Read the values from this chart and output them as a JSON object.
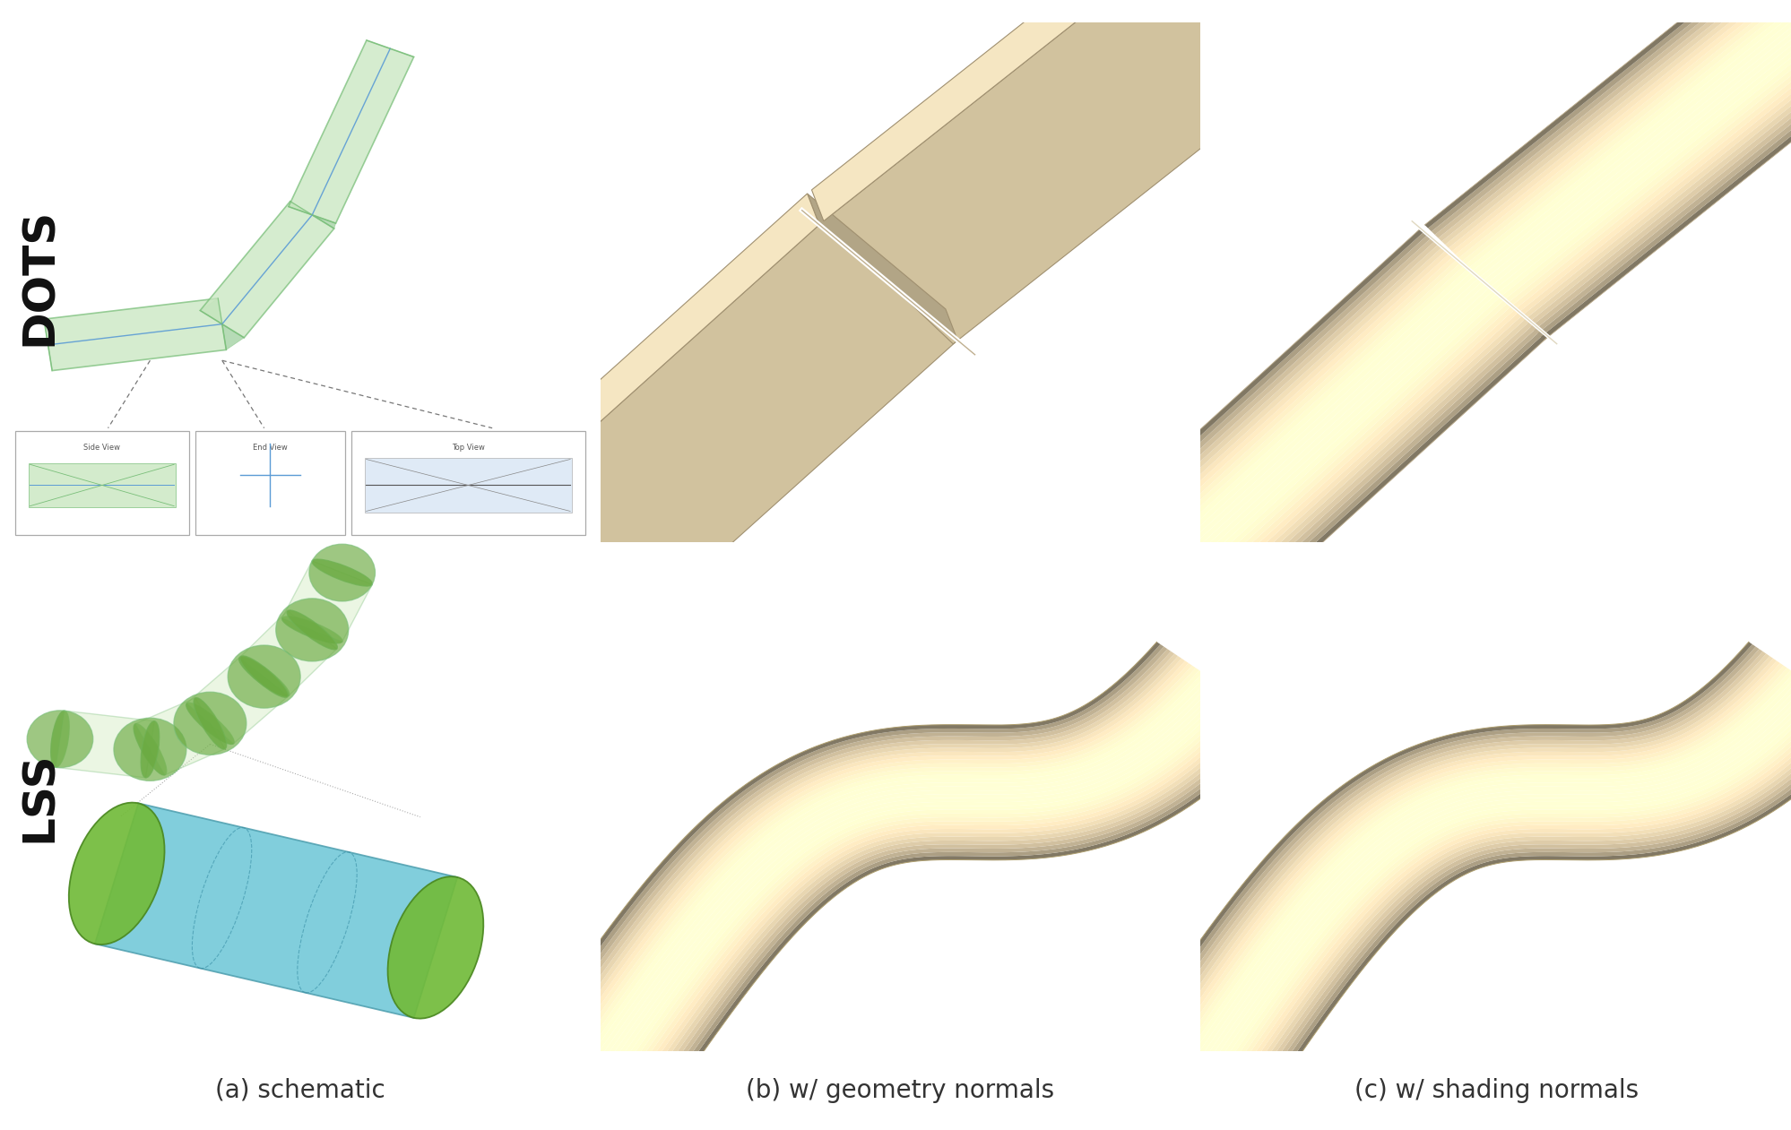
{
  "fig_width": 19.99,
  "fig_height": 12.61,
  "background": "#ffffff",
  "dots_label": "DOTS",
  "lss_label": "LSS",
  "col_labels": [
    "(a) schematic",
    "(b) w/ geometry normals",
    "(c) w/ shading normals"
  ],
  "green_fill": "#c8e6c0",
  "green_edge": "#7abf7a",
  "blue_line": "#5b9bd5",
  "dark_green_end": "#6aaa40",
  "cyan_body": "#70c8d8",
  "strand_bg": "#f5f0e8",
  "col_label_fontsize": 20,
  "row_label_fontsize": 36,
  "strand_lit": [
    0.96,
    0.9,
    0.76
  ],
  "strand_dark": [
    0.62,
    0.56,
    0.44
  ],
  "strand_mid": [
    0.82,
    0.76,
    0.62
  ]
}
